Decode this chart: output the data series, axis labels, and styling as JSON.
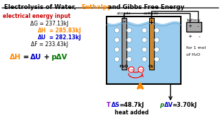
{
  "title_part1": "Electrolysis of Water, ",
  "title_part2": "Enthalpy",
  "title_part3": " and Gibbs Free Energy",
  "subtitle": "electrical energy input",
  "dG_line": [
    "ΔG = 237.13kJ"
  ],
  "dH_line": [
    "ΔH",
    " = 285.83kJ"
  ],
  "dU_line": [
    "ΔU",
    " = 282.13kJ"
  ],
  "dF_line": [
    "ΔF = 233.43kJ"
  ],
  "eq_parts": [
    "ΔH",
    " = ",
    "ΔU",
    " + ",
    "pΔV"
  ],
  "TdS_T": "T",
  "TdS_delta": "ΔS",
  "TdS_val": "=48.7kJ",
  "heat_added": "heat added",
  "pdV_p": "p",
  "pdV_delta": "ΔV",
  "pdV_val": "=3.70kJ",
  "bg_color": "#ffffff",
  "orange": "#ff8800",
  "red": "#cc0000",
  "blue": "#0000cc",
  "green": "#007700",
  "purple": "#8800cc",
  "water_color": "#99ccee",
  "water_wave": "#aaddff",
  "electrode_gray": "#999999",
  "electrode_gold": "#cc8833",
  "bubble_ec": "#6699bb",
  "battery_color": "#aaaaaa",
  "arrow_orange": "#ff8800"
}
